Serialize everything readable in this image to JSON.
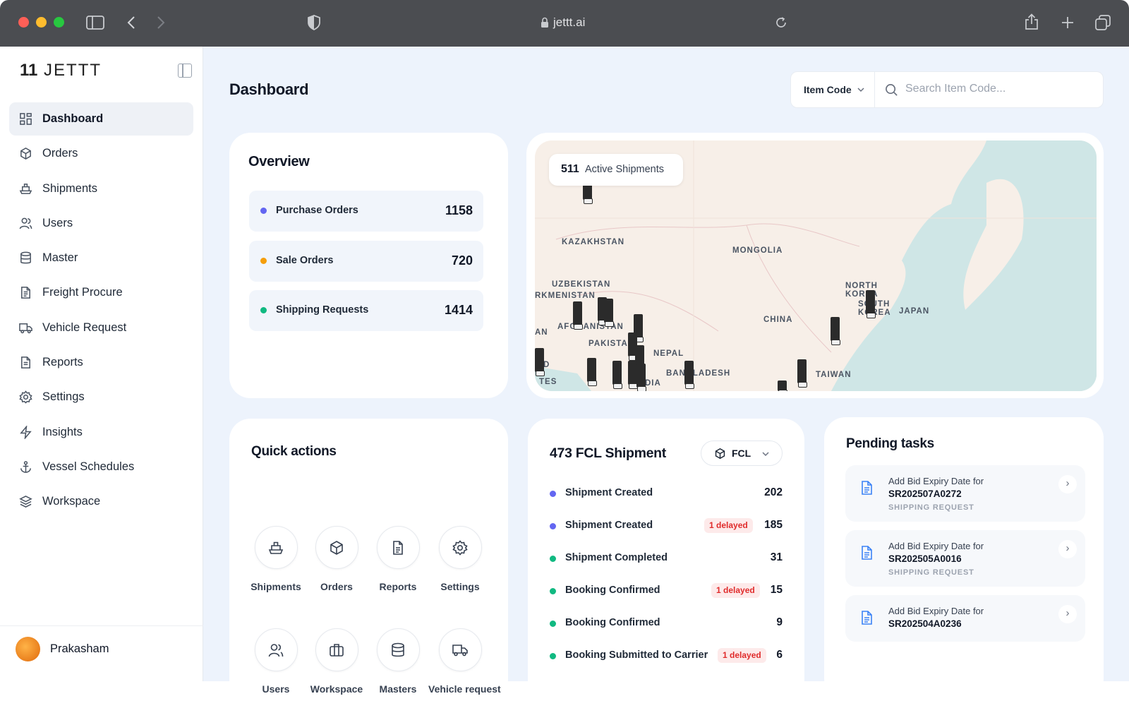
{
  "browser": {
    "url": "jettt.ai"
  },
  "sidebar": {
    "logo": "JETTT",
    "items": [
      {
        "label": "Dashboard",
        "icon": "grid-icon",
        "active": true
      },
      {
        "label": "Orders",
        "icon": "box-icon"
      },
      {
        "label": "Shipments",
        "icon": "ship-icon"
      },
      {
        "label": "Users",
        "icon": "users-icon"
      },
      {
        "label": "Master",
        "icon": "database-icon"
      },
      {
        "label": "Freight Procure",
        "icon": "file-check-icon"
      },
      {
        "label": "Vehicle Request",
        "icon": "truck-icon"
      },
      {
        "label": "Reports",
        "icon": "document-icon"
      },
      {
        "label": "Settings",
        "icon": "gear-icon"
      },
      {
        "label": "Insights",
        "icon": "bolt-icon"
      },
      {
        "label": "Vessel Schedules",
        "icon": "anchor-icon"
      },
      {
        "label": "Workspace",
        "icon": "layers-icon"
      }
    ],
    "user": {
      "name": "Prakasham"
    }
  },
  "header": {
    "title": "Dashboard",
    "filter_label": "Item Code",
    "search_placeholder": "Search Item Code..."
  },
  "overview": {
    "title": "Overview",
    "rows": [
      {
        "label": "Purchase Orders",
        "value": "1158",
        "color": "#6366f1"
      },
      {
        "label": "Sale Orders",
        "value": "720",
        "color": "#f59e0b"
      },
      {
        "label": "Shipping Requests",
        "value": "1414",
        "color": "#10b981"
      }
    ]
  },
  "map": {
    "active_count": "511",
    "active_label": "Active Shipments",
    "labels": [
      "KAZAKHSTAN",
      "MONGOLIA",
      "UZBEKISTAN",
      "RKMENISTAN",
      "CHINA",
      "AFGHANISTAN",
      "AN",
      "PAKISTAN",
      "NEPAL",
      "BANGLADESH",
      "TAIWAN",
      "NORTH KOREA",
      "SOUTH KOREA",
      "JAPAN",
      "D",
      "TES",
      "DIA"
    ]
  },
  "quick_actions": {
    "title": "Quick actions",
    "items": [
      {
        "label": "Shipments",
        "icon": "ship-icon"
      },
      {
        "label": "Orders",
        "icon": "box-icon"
      },
      {
        "label": "Reports",
        "icon": "document-icon"
      },
      {
        "label": "Settings",
        "icon": "gear-icon"
      },
      {
        "label": "Users",
        "icon": "users-icon"
      },
      {
        "label": "Workspace",
        "icon": "briefcase-icon"
      },
      {
        "label": "Masters",
        "icon": "database-icon"
      },
      {
        "label": "Vehicle request",
        "icon": "truck-icon"
      }
    ]
  },
  "fcl": {
    "title": "473 FCL Shipment",
    "selector": "FCL",
    "rows": [
      {
        "label": "Shipment Created",
        "value": "202",
        "color": "#6366f1",
        "badge": ""
      },
      {
        "label": "Shipment Created",
        "value": "185",
        "color": "#6366f1",
        "badge": "1 delayed"
      },
      {
        "label": "Shipment Completed",
        "value": "31",
        "color": "#10b981",
        "badge": ""
      },
      {
        "label": "Booking Confirmed",
        "value": "15",
        "color": "#10b981",
        "badge": "1 delayed"
      },
      {
        "label": "Booking Confirmed",
        "value": "9",
        "color": "#10b981",
        "badge": ""
      },
      {
        "label": "Booking Submitted to Carrier",
        "value": "6",
        "color": "#10b981",
        "badge": "1 delayed"
      }
    ]
  },
  "pending": {
    "title": "Pending tasks",
    "tasks": [
      {
        "line1": "Add Bid Expiry Date for",
        "id": "SR202507A0272",
        "type": "SHIPPING REQUEST"
      },
      {
        "line1": "Add Bid Expiry Date for",
        "id": "SR202505A0016",
        "type": "SHIPPING REQUEST"
      },
      {
        "line1": "Add Bid Expiry Date for",
        "id": "SR202504A0236",
        "type": ""
      }
    ]
  }
}
